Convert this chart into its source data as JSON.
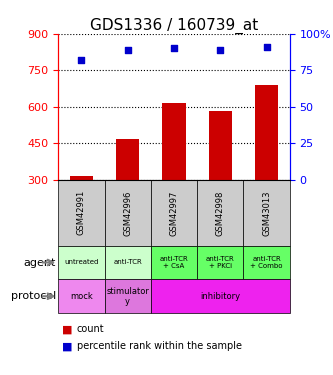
{
  "title": "GDS1336 / 160739_at",
  "samples": [
    "GSM42991",
    "GSM42996",
    "GSM42997",
    "GSM42998",
    "GSM43013"
  ],
  "counts": [
    315,
    470,
    615,
    585,
    690
  ],
  "percentile_ranks": [
    82,
    89,
    90,
    89,
    91
  ],
  "ylim_left": [
    300,
    900
  ],
  "ylim_right": [
    0,
    100
  ],
  "yticks_left": [
    300,
    450,
    600,
    750,
    900
  ],
  "yticks_right": [
    0,
    25,
    50,
    75,
    100
  ],
  "bar_color": "#cc0000",
  "dot_color": "#0000cc",
  "agent_labels": [
    "untreated",
    "anti-TCR",
    "anti-TCR\n+ CsA",
    "anti-TCR\n+ PKCi",
    "anti-TCR\n+ Combo"
  ],
  "agent_col_colors": [
    "#ccffcc",
    "#ccffcc",
    "#66ff66",
    "#66ff66",
    "#66ff66"
  ],
  "protocol_data": [
    [
      0,
      1,
      "mock",
      "#ee88ee"
    ],
    [
      1,
      2,
      "stimulator\ny",
      "#dd77dd"
    ],
    [
      2,
      5,
      "inhibitory",
      "#ee22ee"
    ]
  ],
  "sample_bg_color": "#cccccc",
  "legend_count_color": "#cc0000",
  "legend_dot_color": "#0000cc",
  "title_fontsize": 11
}
